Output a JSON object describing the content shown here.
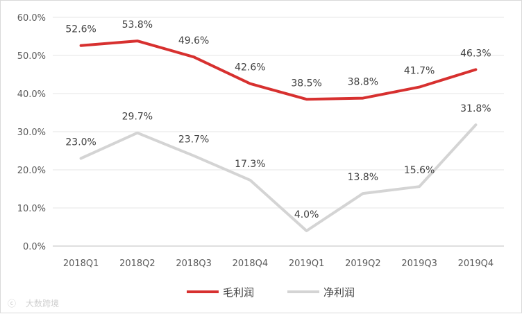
{
  "chart_data": {
    "type": "line",
    "categories": [
      "2018Q1",
      "2018Q2",
      "2018Q3",
      "2018Q4",
      "2019Q1",
      "2019Q2",
      "2019Q3",
      "2019Q4"
    ],
    "series": [
      {
        "name": "毛利润",
        "color": "#d7302f",
        "values": [
          52.6,
          53.8,
          49.6,
          42.6,
          38.5,
          38.8,
          41.7,
          46.3
        ],
        "labels": [
          "52.6%",
          "53.8%",
          "49.6%",
          "42.6%",
          "38.5%",
          "38.8%",
          "41.7%",
          "46.3%"
        ]
      },
      {
        "name": "净利润",
        "color": "#d4d4d4",
        "values": [
          23.0,
          29.7,
          23.7,
          17.3,
          4.0,
          13.8,
          15.6,
          31.8
        ],
        "labels": [
          "23.0%",
          "29.7%",
          "23.7%",
          "17.3%",
          "4.0%",
          "13.8%",
          "15.6%",
          "31.8%"
        ]
      }
    ],
    "ylim": [
      0,
      60
    ],
    "yticks": [
      "0.0%",
      "10.0%",
      "20.0%",
      "30.0%",
      "40.0%",
      "50.0%",
      "60.0%"
    ],
    "grid": "horizontal",
    "legend": "bottom-center"
  },
  "watermark": "大数跨境"
}
